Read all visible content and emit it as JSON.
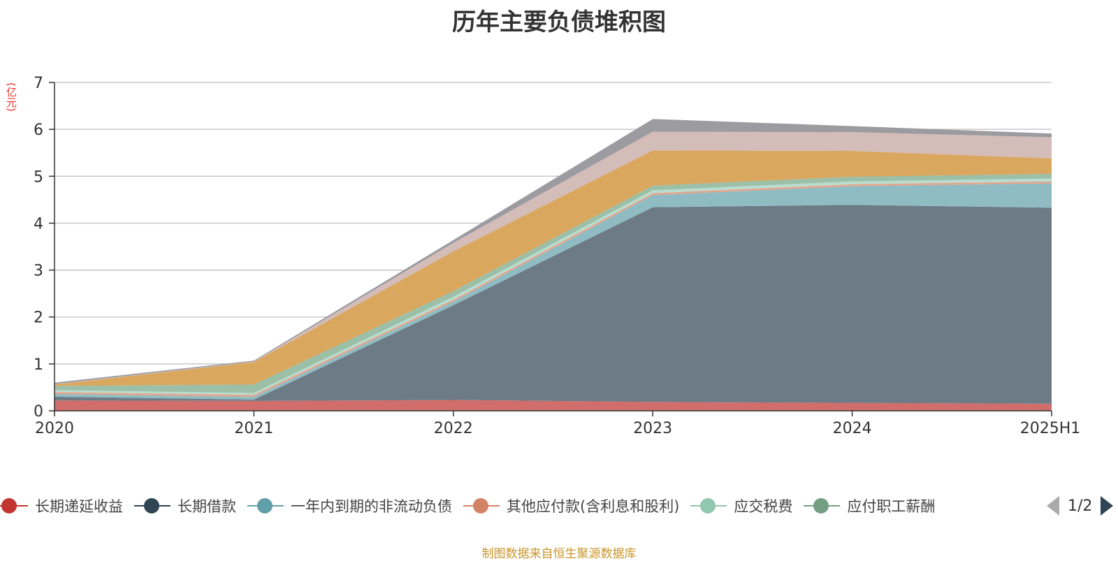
{
  "chart_data": {
    "type": "area",
    "stacked": true,
    "title": "历年主要负债堆积图",
    "y_unit": "(亿元)",
    "categories": [
      "2020",
      "2021",
      "2022",
      "2023",
      "2024",
      "2025H1"
    ],
    "ylim": [
      0,
      7
    ],
    "yticks": [
      0,
      1,
      2,
      3,
      4,
      5,
      6,
      7
    ],
    "grid": true,
    "series": [
      {
        "name": "长期递延收益",
        "color": "#d16d6a",
        "values": [
          0.22,
          0.21,
          0.23,
          0.19,
          0.17,
          0.15
        ]
      },
      {
        "name": "长期借款",
        "color": "#6c7b86",
        "values": [
          0.08,
          0.03,
          2.02,
          4.15,
          4.22,
          4.18
        ]
      },
      {
        "name": "一年内到期的非流动负债",
        "color": "#8fbcc2",
        "values": [
          0.06,
          0.06,
          0.08,
          0.26,
          0.4,
          0.52
        ]
      },
      {
        "name": "其他应付款(含利息和股利)",
        "color": "#e4a48c",
        "values": [
          0.04,
          0.04,
          0.04,
          0.04,
          0.04,
          0.04
        ]
      },
      {
        "name": "应交税费",
        "color": "#b8ddd0",
        "values": [
          0.04,
          0.04,
          0.06,
          0.06,
          0.06,
          0.06
        ]
      },
      {
        "name": "应付职工薪酬",
        "color": "#9bbfa7",
        "values": [
          0.09,
          0.18,
          0.12,
          0.1,
          0.1,
          0.1
        ]
      },
      {
        "name": "",
        "color": "#d9a75e",
        "values": [
          0.03,
          0.48,
          0.85,
          0.75,
          0.55,
          0.33
        ]
      },
      {
        "name": "",
        "color": "#d4bcb8",
        "values": [
          0.01,
          0.01,
          0.18,
          0.4,
          0.4,
          0.45
        ]
      },
      {
        "name": "",
        "color": "#9b9ba0",
        "values": [
          0.03,
          0.02,
          0.06,
          0.27,
          0.13,
          0.08
        ]
      }
    ]
  },
  "legend": {
    "items": [
      {
        "label": "长期递延收益",
        "color": "#c23531"
      },
      {
        "label": "长期借款",
        "color": "#2f4554"
      },
      {
        "label": "一年内到期的非流动负债",
        "color": "#61a0a8"
      },
      {
        "label": "其他应付款(含利息和股利)",
        "color": "#d48265"
      },
      {
        "label": "应交税费",
        "color": "#91c7ae"
      },
      {
        "label": "应付职工薪酬",
        "color": "#749f83"
      }
    ],
    "page": "1/2"
  },
  "source": "制图数据来自恒生聚源数据库"
}
